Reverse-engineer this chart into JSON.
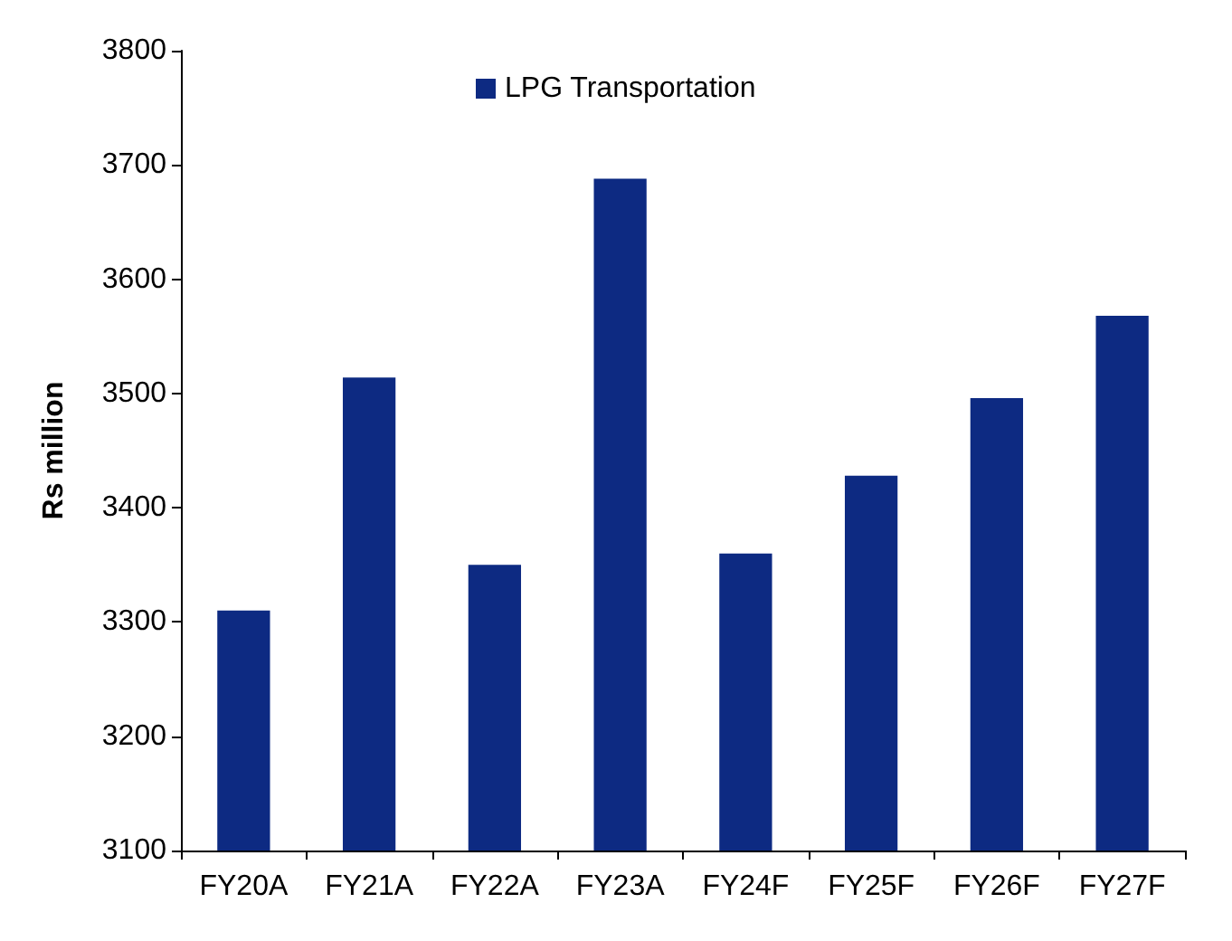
{
  "chart_data": {
    "type": "bar",
    "ylabel": "Rs million",
    "categories": [
      "FY20A",
      "FY21A",
      "FY22A",
      "FY23A",
      "FY24F",
      "FY25F",
      "FY26F",
      "FY27F"
    ],
    "series": [
      {
        "name": "LPG Transportation",
        "color": "#0d2a82",
        "values": [
          3310,
          3514,
          3350,
          3688,
          3360,
          3428,
          3496,
          3568
        ]
      }
    ],
    "ylim": [
      3100,
      3800
    ],
    "yticks": [
      3100,
      3200,
      3300,
      3400,
      3500,
      3600,
      3700,
      3800
    ],
    "grid": false,
    "legend": "top"
  }
}
